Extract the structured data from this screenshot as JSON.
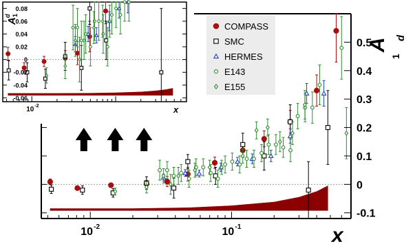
{
  "colors": {
    "compass": "#a50f0f",
    "smc": "#000000",
    "hermes": "#1f3fbf",
    "e143": "#2e8b2e",
    "e155": "#2e8b2e",
    "band": "#8b0000",
    "zero_line": "#9a9a9a",
    "legend_bg": "#ececec",
    "arrow": "#000000"
  },
  "main_axis": {
    "ylabel_base": "A",
    "ylabel_sub": "1",
    "ylabel_sup": "d",
    "xlabel": "x",
    "x_ticks": [
      {
        "label": "10",
        "sup": "-2",
        "x": 0.01
      },
      {
        "label": "10",
        "sup": "-1",
        "x": 0.1
      }
    ],
    "y_ticks": [
      "0.5",
      "0.4",
      "0.3",
      "0.2",
      "0.1",
      "0",
      "-0.1"
    ]
  },
  "inset_axis": {
    "ylabel_base": "A",
    "ylabel_sub": "1",
    "ylabel_sup": "d",
    "xlabel": "x",
    "x_ticks": [
      {
        "label": "10",
        "sup": "-2",
        "x": 0.01
      }
    ],
    "y_ticks": [
      "0.08",
      "0.06",
      "0.04",
      "0.02",
      "0",
      "-0.02",
      "-0.04",
      "-0.06"
    ]
  },
  "legend": [
    {
      "label": "COMPASS",
      "icon": "filled-circle-icon"
    },
    {
      "label": "SMC",
      "icon": "open-square-icon"
    },
    {
      "label": "HERMES",
      "icon": "open-triangle-icon"
    },
    {
      "label": "E143",
      "icon": "open-circle-icon"
    },
    {
      "label": "E155",
      "icon": "open-diamond-icon"
    }
  ],
  "chart_data": {
    "type": "scatter",
    "xscale": "log",
    "xlim": [
      0.0045,
      0.7
    ],
    "ylim": [
      -0.12,
      0.6
    ],
    "grid": false,
    "legend_position": "top-center",
    "arrows_at_x": [
      0.009,
      0.015,
      0.024
    ],
    "series": [
      {
        "name": "COMPASS",
        "marker": "filled-circle",
        "points": [
          {
            "x": 0.0052,
            "y": 0.009,
            "err": 0.01
          },
          {
            "x": 0.0081,
            "y": -0.013,
            "err": 0.008
          },
          {
            "x": 0.014,
            "y": -0.003,
            "err": 0.008
          },
          {
            "x": 0.025,
            "y": 0.002,
            "err": 0.012
          },
          {
            "x": 0.035,
            "y": 0.01,
            "err": 0.018
          },
          {
            "x": 0.049,
            "y": 0.036,
            "err": 0.024
          },
          {
            "x": 0.076,
            "y": 0.076,
            "err": 0.02
          },
          {
            "x": 0.12,
            "y": 0.12,
            "err": 0.025
          },
          {
            "x": 0.17,
            "y": 0.16,
            "err": 0.028
          },
          {
            "x": 0.26,
            "y": 0.22,
            "err": 0.04
          },
          {
            "x": 0.4,
            "y": 0.33,
            "err": 0.055
          },
          {
            "x": 0.55,
            "y": 0.54,
            "err": 0.11
          }
        ]
      },
      {
        "name": "SMC",
        "marker": "open-square",
        "points": [
          {
            "x": 0.0053,
            "y": -0.017,
            "err": 0.015
          },
          {
            "x": 0.0088,
            "y": -0.02,
            "err": 0.015
          },
          {
            "x": 0.0145,
            "y": -0.03,
            "err": 0.015
          },
          {
            "x": 0.025,
            "y": 0.005,
            "err": 0.022
          },
          {
            "x": 0.039,
            "y": -0.013,
            "err": 0.035
          },
          {
            "x": 0.049,
            "y": 0.08,
            "err": 0.025
          },
          {
            "x": 0.077,
            "y": 0.03,
            "err": 0.03
          },
          {
            "x": 0.12,
            "y": 0.14,
            "err": 0.04
          },
          {
            "x": 0.17,
            "y": 0.1,
            "err": 0.05
          },
          {
            "x": 0.26,
            "y": 0.22,
            "err": 0.06
          },
          {
            "x": 0.35,
            "y": -0.02,
            "err": 0.1
          },
          {
            "x": 0.48,
            "y": 0.2,
            "err": 0.13
          }
        ]
      },
      {
        "name": "HERMES",
        "marker": "open-triangle",
        "points": [
          {
            "x": 0.033,
            "y": 0.024,
            "err": 0.012
          },
          {
            "x": 0.047,
            "y": 0.04,
            "err": 0.012
          },
          {
            "x": 0.059,
            "y": 0.038,
            "err": 0.012
          },
          {
            "x": 0.084,
            "y": 0.06,
            "err": 0.015
          },
          {
            "x": 0.11,
            "y": 0.08,
            "err": 0.015
          },
          {
            "x": 0.14,
            "y": 0.09,
            "err": 0.017
          },
          {
            "x": 0.19,
            "y": 0.1,
            "err": 0.02
          },
          {
            "x": 0.26,
            "y": 0.17,
            "err": 0.025
          },
          {
            "x": 0.34,
            "y": 0.32,
            "err": 0.035
          },
          {
            "x": 0.45,
            "y": 0.32,
            "err": 0.045
          }
        ]
      },
      {
        "name": "E143",
        "marker": "open-circle",
        "points": [
          {
            "x": 0.031,
            "y": 0.05,
            "err": 0.035
          },
          {
            "x": 0.035,
            "y": 0.05,
            "err": 0.03
          },
          {
            "x": 0.039,
            "y": 0.03,
            "err": 0.03
          },
          {
            "x": 0.044,
            "y": 0.04,
            "err": 0.03
          },
          {
            "x": 0.05,
            "y": 0.02,
            "err": 0.03
          },
          {
            "x": 0.056,
            "y": 0.06,
            "err": 0.03
          },
          {
            "x": 0.063,
            "y": 0.06,
            "err": 0.03
          },
          {
            "x": 0.071,
            "y": 0.04,
            "err": 0.03
          },
          {
            "x": 0.08,
            "y": 0.02,
            "err": 0.03
          },
          {
            "x": 0.09,
            "y": 0.07,
            "err": 0.03
          },
          {
            "x": 0.101,
            "y": 0.08,
            "err": 0.03
          },
          {
            "x": 0.114,
            "y": 0.07,
            "err": 0.03
          },
          {
            "x": 0.128,
            "y": 0.09,
            "err": 0.03
          },
          {
            "x": 0.144,
            "y": 0.09,
            "err": 0.03
          },
          {
            "x": 0.163,
            "y": 0.11,
            "err": 0.03
          },
          {
            "x": 0.183,
            "y": 0.14,
            "err": 0.035
          },
          {
            "x": 0.206,
            "y": 0.14,
            "err": 0.035
          },
          {
            "x": 0.232,
            "y": 0.13,
            "err": 0.035
          },
          {
            "x": 0.261,
            "y": 0.12,
            "err": 0.04
          },
          {
            "x": 0.294,
            "y": 0.24,
            "err": 0.045
          },
          {
            "x": 0.331,
            "y": 0.27,
            "err": 0.05
          },
          {
            "x": 0.373,
            "y": 0.27,
            "err": 0.055
          },
          {
            "x": 0.42,
            "y": 0.35,
            "err": 0.07
          },
          {
            "x": 0.6,
            "y": 0.48,
            "err": 0.11
          }
        ]
      },
      {
        "name": "E155",
        "marker": "open-diamond",
        "points": [
          {
            "x": 0.015,
            "y": -0.025,
            "err": 0.012
          },
          {
            "x": 0.025,
            "y": -0.01,
            "err": 0.02
          },
          {
            "x": 0.033,
            "y": 0.03,
            "err": 0.025
          },
          {
            "x": 0.037,
            "y": 0.0,
            "err": 0.035
          },
          {
            "x": 0.042,
            "y": 0.03,
            "err": 0.03
          },
          {
            "x": 0.055,
            "y": 0.05,
            "err": 0.025
          },
          {
            "x": 0.07,
            "y": 0.06,
            "err": 0.025
          },
          {
            "x": 0.085,
            "y": 0.06,
            "err": 0.025
          },
          {
            "x": 0.12,
            "y": 0.1,
            "err": 0.025
          },
          {
            "x": 0.15,
            "y": 0.19,
            "err": 0.03
          },
          {
            "x": 0.18,
            "y": 0.2,
            "err": 0.03
          },
          {
            "x": 0.22,
            "y": 0.15,
            "err": 0.035
          },
          {
            "x": 0.27,
            "y": 0.18,
            "err": 0.04
          },
          {
            "x": 0.33,
            "y": 0.28,
            "err": 0.05
          },
          {
            "x": 0.65,
            "y": 0.18,
            "err": 0.09
          }
        ]
      }
    ],
    "systematic_band": {
      "name": "COMPASS systematic",
      "x": [
        0.0052,
        0.02,
        0.05,
        0.1,
        0.2,
        0.3,
        0.4,
        0.48
      ],
      "top": [
        -0.085,
        -0.085,
        -0.082,
        -0.075,
        -0.062,
        -0.045,
        -0.025,
        -0.005
      ],
      "bottom": -0.092
    }
  }
}
